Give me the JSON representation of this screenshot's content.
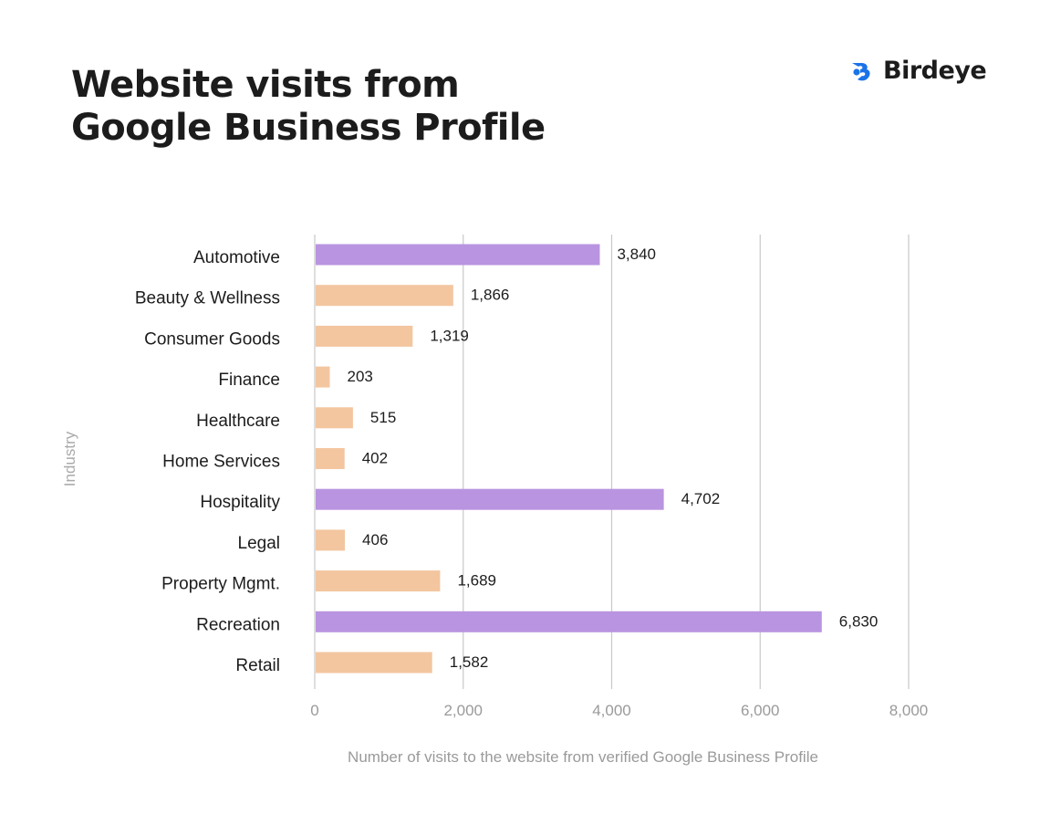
{
  "header": {
    "title_line1": "Website visits from",
    "title_line2": "Google Business Profile"
  },
  "brand": {
    "name": "Birdeye",
    "icon": "birdeye-logo-icon",
    "color": "#1a73e8"
  },
  "colors": {
    "highlight": "#b994e0",
    "standard": "#f3c6a0",
    "gridline": "#c8c8c8",
    "axis_text": "#9a9a9a",
    "label_text": "#1c1c1c"
  },
  "chart_data": {
    "type": "bar",
    "orientation": "horizontal",
    "title": "Website visits from Google Business Profile",
    "xlabel": "Number of visits to the website from verified Google Business Profile",
    "ylabel": "Industry",
    "xlim": [
      0,
      8000
    ],
    "xticks": [
      0,
      2000,
      4000,
      6000,
      8000
    ],
    "xtick_labels": [
      "0",
      "2,000",
      "4,000",
      "6,000",
      "8,000"
    ],
    "grid": "vertical",
    "categories": [
      "Automotive",
      "Beauty & Wellness",
      "Consumer Goods",
      "Finance",
      "Healthcare",
      "Home Services",
      "Hospitality",
      "Legal",
      "Property Mgmt.",
      "Recreation",
      "Retail"
    ],
    "values": [
      3840,
      1866,
      1319,
      203,
      515,
      402,
      4702,
      406,
      1689,
      6830,
      1582
    ],
    "value_labels": [
      "3,840",
      "1,866",
      "1,319",
      "203",
      "515",
      "402",
      "4,702",
      "406",
      "1,689",
      "6,830",
      "1,582"
    ],
    "highlighted": [
      true,
      false,
      false,
      false,
      false,
      false,
      true,
      false,
      false,
      true,
      false
    ]
  }
}
